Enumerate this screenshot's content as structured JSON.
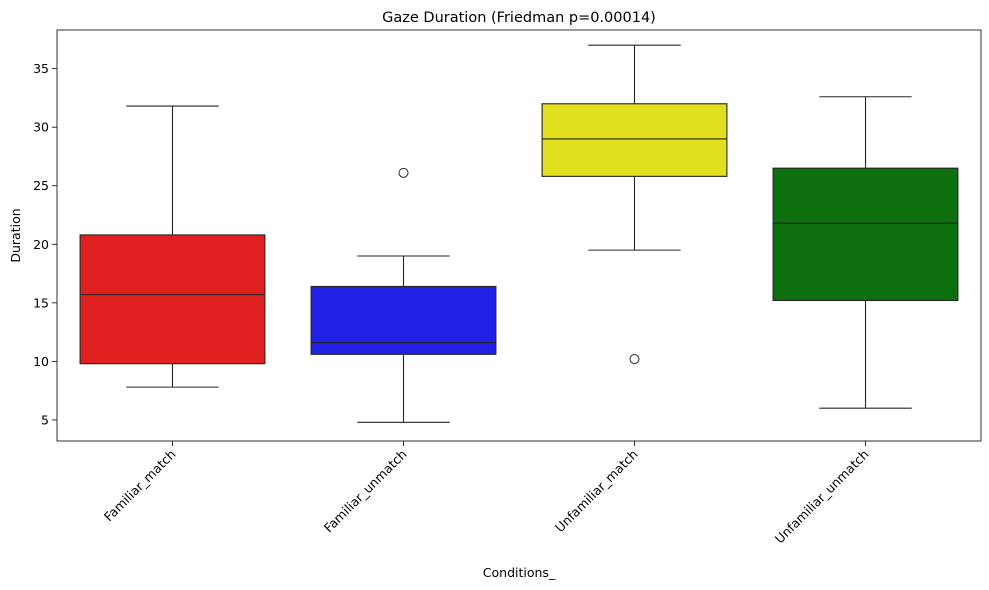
{
  "chart_data": {
    "type": "box",
    "title": "Gaze Duration (Friedman p=0.00014)",
    "xlabel": "Conditions_",
    "ylabel": "Duration",
    "ylim": [
      3.2,
      38.3
    ],
    "yticks": [
      5,
      10,
      15,
      20,
      25,
      30,
      35
    ],
    "grid": false,
    "categories": [
      "Familiar_match",
      "Familiar_unmatch",
      "Unfamiliar_match",
      "Unfamiliar_unmatch"
    ],
    "boxes": [
      {
        "category": "Familiar_match",
        "color": "#e01f1f",
        "whisker_low": 7.8,
        "q1": 9.8,
        "median": 15.7,
        "q3": 20.8,
        "whisker_high": 31.8,
        "outliers": []
      },
      {
        "category": "Familiar_unmatch",
        "color": "#2121e6",
        "whisker_low": 4.8,
        "q1": 10.6,
        "median": 11.6,
        "q3": 16.4,
        "whisker_high": 19.0,
        "outliers": [
          26.1
        ]
      },
      {
        "category": "Unfamiliar_match",
        "color": "#e0e01e",
        "whisker_low": 19.5,
        "q1": 25.8,
        "median": 29.0,
        "q3": 32.0,
        "whisker_high": 37.0,
        "outliers": [
          10.2
        ]
      },
      {
        "category": "Unfamiliar_unmatch",
        "color": "#0e6f0e",
        "whisker_low": 6.0,
        "q1": 15.2,
        "median": 21.8,
        "q3": 26.5,
        "whisker_high": 32.6,
        "outliers": []
      }
    ]
  }
}
